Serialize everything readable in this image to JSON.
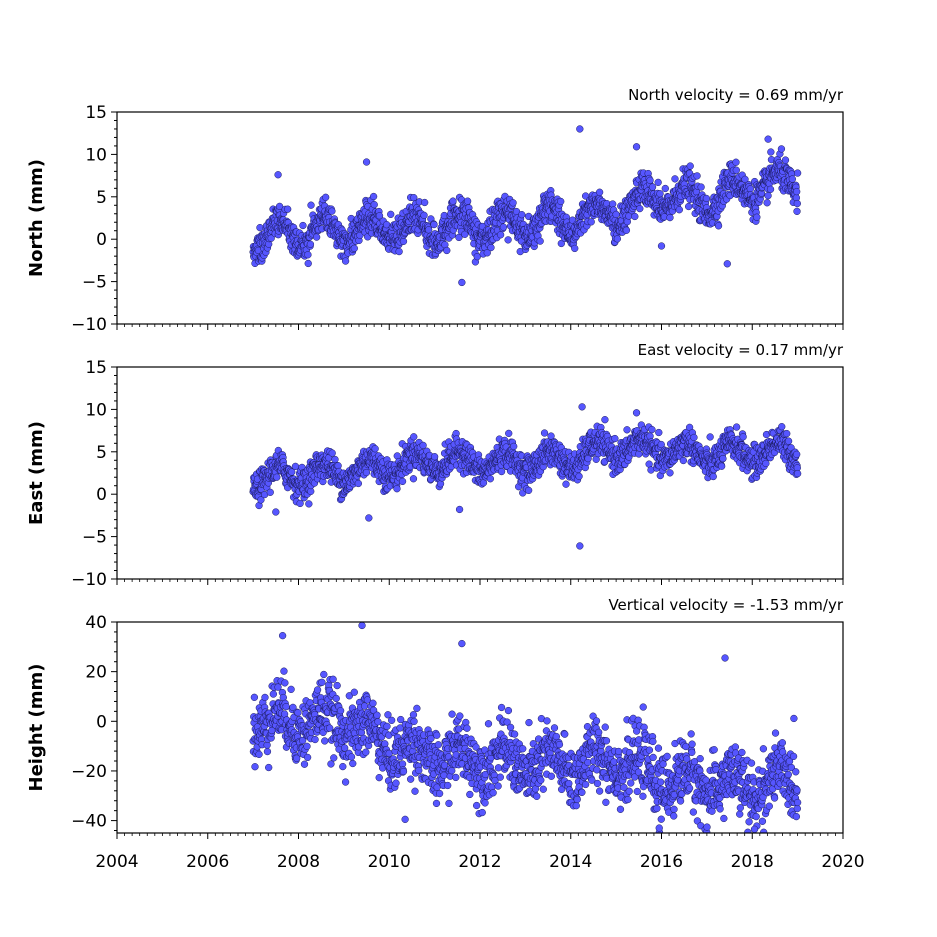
{
  "chart_data": [
    {
      "type": "scatter",
      "annotation": "North velocity = 0.69 mm/yr",
      "ylabel": "North (mm)",
      "xlim": [
        2004,
        2020
      ],
      "ylim": [
        -10,
        15
      ],
      "yticks": [
        15,
        10,
        5,
        0,
        -5,
        -10
      ],
      "ytick_labels": [
        "15",
        "10",
        "5",
        "0",
        "−5",
        "−10"
      ],
      "xtick_labels_shown": false,
      "seasonal_amplitude": 1.6,
      "noise_sd": 1.0,
      "series": [
        {
          "points": [
            [
              2007.0,
              0.2
            ],
            [
              2008.0,
              1.0
            ],
            [
              2009.0,
              1.2
            ],
            [
              2010.0,
              1.6
            ],
            [
              2011.0,
              1.3
            ],
            [
              2012.0,
              1.7
            ],
            [
              2013.0,
              2.0
            ],
            [
              2014.0,
              2.2
            ],
            [
              2014.5,
              2.7
            ],
            [
              2015.0,
              3.3
            ],
            [
              2016.0,
              5.0
            ],
            [
              2017.0,
              4.6
            ],
            [
              2018.0,
              6.2
            ],
            [
              2019.0,
              6.7
            ]
          ],
          "outliers": [
            [
              2014.2,
              13.0
            ],
            [
              2015.45,
              10.9
            ],
            [
              2018.35,
              11.8
            ],
            [
              2007.55,
              7.6
            ],
            [
              2009.5,
              9.1
            ],
            [
              2017.45,
              -2.9
            ],
            [
              2011.6,
              -5.1
            ],
            [
              2016.0,
              -0.8
            ]
          ]
        }
      ]
    },
    {
      "type": "scatter",
      "annotation": "East velocity = 0.17 mm/yr",
      "ylabel": "East (mm)",
      "xlim": [
        2004,
        2020
      ],
      "ylim": [
        -10,
        15
      ],
      "yticks": [
        15,
        10,
        5,
        0,
        -5,
        -10
      ],
      "ytick_labels": [
        "15",
        "10",
        "5",
        "0",
        "−5",
        "−10"
      ],
      "xtick_labels_shown": false,
      "seasonal_amplitude": 1.2,
      "noise_sd": 0.9,
      "series": [
        {
          "points": [
            [
              2007.0,
              1.8
            ],
            [
              2008.0,
              2.3
            ],
            [
              2009.0,
              2.6
            ],
            [
              2010.0,
              3.3
            ],
            [
              2011.0,
              4.0
            ],
            [
              2012.0,
              3.7
            ],
            [
              2013.0,
              3.8
            ],
            [
              2014.0,
              4.1
            ],
            [
              2015.0,
              5.6
            ],
            [
              2016.0,
              5.2
            ],
            [
              2017.0,
              4.7
            ],
            [
              2018.0,
              4.9
            ],
            [
              2019.0,
              5.1
            ]
          ],
          "outliers": [
            [
              2014.25,
              10.3
            ],
            [
              2014.2,
              -6.1
            ],
            [
              2015.45,
              9.6
            ],
            [
              2009.55,
              -2.8
            ],
            [
              2007.5,
              -2.1
            ],
            [
              2011.55,
              -1.8
            ]
          ]
        }
      ]
    },
    {
      "type": "scatter",
      "annotation": "Vertical velocity = -1.53 mm/yr",
      "ylabel": "Height (mm)",
      "xlim": [
        2004,
        2020
      ],
      "ylim": [
        -45,
        40
      ],
      "yticks": [
        40,
        20,
        0,
        -20,
        -40
      ],
      "ytick_labels": [
        "40",
        "20",
        "0",
        "−20",
        "−40"
      ],
      "xticks": [
        2004,
        2006,
        2008,
        2010,
        2012,
        2014,
        2016,
        2018,
        2020
      ],
      "xtick_labels": [
        "2004",
        "2006",
        "2008",
        "2010",
        "2012",
        "2014",
        "2016",
        "2018",
        "2020"
      ],
      "xtick_labels_shown": true,
      "seasonal_amplitude": 5.0,
      "noise_sd": 6.5,
      "series": [
        {
          "points": [
            [
              2007.0,
              0.0
            ],
            [
              2008.0,
              0.0
            ],
            [
              2009.0,
              0.0
            ],
            [
              2010.0,
              -10.0
            ],
            [
              2011.0,
              -15.0
            ],
            [
              2012.0,
              -15.0
            ],
            [
              2013.0,
              -17.0
            ],
            [
              2014.0,
              -18.0
            ],
            [
              2015.0,
              -15.0
            ],
            [
              2016.0,
              -23.0
            ],
            [
              2017.0,
              -25.0
            ],
            [
              2018.0,
              -27.0
            ],
            [
              2019.0,
              -23.0
            ]
          ],
          "outliers": [
            [
              2009.4,
              38.6
            ],
            [
              2007.65,
              34.5
            ],
            [
              2011.6,
              31.3
            ],
            [
              2017.4,
              25.5
            ],
            [
              2015.95,
              -43.0
            ],
            [
              2018.05,
              -43.5
            ],
            [
              2010.35,
              -39.5
            ]
          ]
        }
      ]
    }
  ],
  "style": {
    "marker_fill": "#5656ff",
    "marker_edge": "#1a1a5a"
  }
}
